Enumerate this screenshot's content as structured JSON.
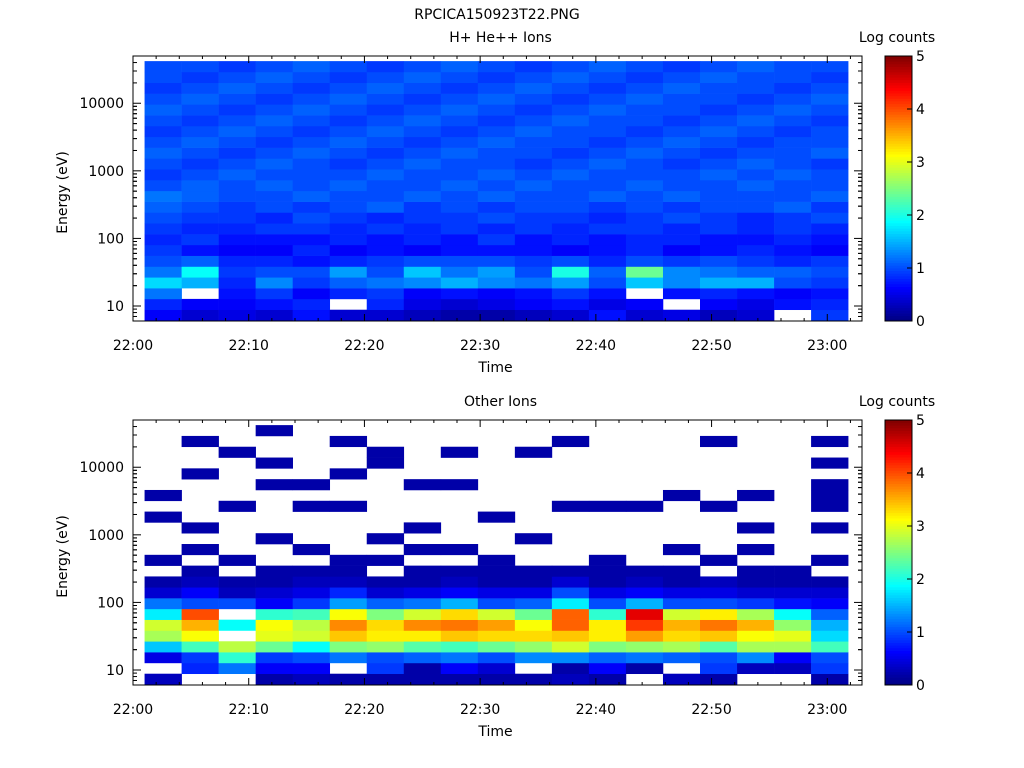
{
  "figure_title": "RPCICA150923T22.PNG",
  "colorscale": [
    "#00007f",
    "#0000ff",
    "#007fff",
    "#00ffff",
    "#7fff7f",
    "#ffff00",
    "#ff7f00",
    "#ff0000",
    "#7f0000"
  ],
  "chart_data": [
    {
      "type": "heatmap",
      "title": "H+ He++ Ions",
      "xlabel": "Time",
      "ylabel": "Energy (eV)",
      "colorbar_label": "Log counts",
      "colorbar_range": [
        0,
        5
      ],
      "colorbar_ticks": [
        "0",
        "1",
        "2",
        "3",
        "4",
        "5"
      ],
      "x_range": [
        "22:00",
        "23:03"
      ],
      "x_ticks": [
        "22:00",
        "22:10",
        "22:20",
        "22:30",
        "22:40",
        "22:50",
        "23:00"
      ],
      "y_scale": "log",
      "y_range": [
        6,
        50000
      ],
      "y_ticks": [
        "10",
        "100",
        "1000",
        "10000"
      ],
      "time_bins": 19,
      "time_bin_start": "22:01",
      "time_bin_minutes": 3.2,
      "energy_bins": 24,
      "note_values": "log10 counts per (time, energy) cell, row 0 = lowest energy; -1 = no data (white)",
      "values": [
        [
          0.6,
          0.4,
          0.5,
          0.4,
          0.7,
          0.4,
          0.4,
          0.3,
          0.2,
          0.2,
          0.3,
          0.4,
          0.7,
          0.4,
          0.5,
          0.3,
          0.4,
          -1,
          0.9
        ],
        [
          0.8,
          0.6,
          0.6,
          0.7,
          0.8,
          -1,
          0.8,
          0.5,
          0.4,
          0.5,
          0.6,
          0.7,
          0.5,
          0.6,
          -1,
          0.6,
          0.5,
          0.7,
          0.8
        ],
        [
          1.2,
          -1,
          0.7,
          0.9,
          0.6,
          0.8,
          0.9,
          0.6,
          0.7,
          0.6,
          0.7,
          0.9,
          0.7,
          -1,
          0.7,
          0.8,
          0.7,
          0.6,
          0.7
        ],
        [
          1.7,
          1.5,
          0.8,
          1.3,
          0.9,
          1.1,
          1.2,
          1.3,
          1.5,
          1.3,
          1.2,
          1.4,
          1.0,
          1.6,
          1.3,
          1.5,
          1.5,
          1.0,
          0.9
        ],
        [
          1.2,
          1.9,
          0.9,
          1.0,
          1.0,
          1.4,
          1.0,
          1.6,
          1.2,
          1.4,
          1.0,
          2.0,
          1.1,
          2.4,
          1.3,
          1.2,
          1.1,
          1.1,
          1.0
        ],
        [
          1.0,
          1.1,
          0.8,
          0.8,
          0.7,
          0.8,
          0.9,
          1.0,
          1.0,
          1.0,
          0.9,
          1.0,
          0.8,
          1.0,
          0.9,
          1.0,
          0.9,
          0.8,
          0.9
        ],
        [
          0.9,
          0.7,
          0.6,
          0.6,
          0.8,
          0.6,
          0.7,
          0.6,
          0.7,
          0.7,
          0.7,
          0.6,
          0.7,
          0.8,
          0.6,
          0.7,
          0.8,
          0.7,
          0.6
        ],
        [
          0.8,
          0.9,
          0.7,
          0.7,
          0.7,
          0.8,
          0.7,
          0.8,
          0.7,
          0.9,
          0.7,
          0.8,
          0.7,
          0.8,
          0.8,
          0.7,
          0.7,
          0.8,
          0.7
        ],
        [
          0.9,
          0.8,
          0.8,
          0.9,
          0.9,
          0.8,
          0.9,
          0.8,
          0.9,
          0.8,
          0.9,
          0.8,
          0.9,
          0.9,
          0.8,
          0.9,
          0.8,
          0.9,
          0.8
        ],
        [
          1.0,
          0.9,
          0.9,
          0.8,
          1.0,
          0.9,
          0.8,
          0.9,
          0.9,
          1.0,
          0.9,
          0.9,
          0.8,
          0.9,
          1.0,
          0.9,
          0.8,
          0.9,
          1.0
        ],
        [
          1.1,
          1.0,
          0.9,
          1.0,
          0.9,
          1.0,
          1.1,
          0.9,
          1.0,
          0.9,
          1.0,
          1.0,
          0.9,
          1.0,
          0.9,
          1.0,
          1.0,
          1.1,
          0.9
        ],
        [
          1.2,
          1.1,
          1.0,
          1.0,
          1.1,
          1.0,
          1.0,
          1.1,
          1.0,
          1.1,
          1.0,
          1.0,
          1.1,
          1.0,
          1.1,
          1.0,
          1.0,
          1.0,
          1.1
        ],
        [
          1.0,
          1.1,
          1.0,
          1.1,
          1.0,
          1.1,
          1.0,
          1.0,
          1.1,
          1.0,
          1.1,
          1.0,
          1.0,
          1.1,
          1.0,
          1.0,
          1.1,
          1.0,
          1.0
        ],
        [
          0.9,
          1.0,
          1.1,
          1.0,
          1.0,
          1.0,
          1.1,
          1.0,
          1.0,
          1.1,
          1.0,
          1.1,
          1.0,
          1.0,
          1.0,
          1.1,
          1.0,
          1.1,
          1.0
        ],
        [
          1.0,
          0.9,
          1.0,
          1.1,
          1.0,
          0.9,
          1.0,
          1.1,
          1.0,
          1.0,
          0.9,
          1.0,
          1.1,
          1.0,
          0.9,
          1.0,
          1.1,
          1.0,
          0.9
        ],
        [
          1.1,
          1.0,
          0.9,
          1.0,
          1.1,
          1.0,
          0.9,
          1.0,
          1.1,
          1.0,
          1.0,
          0.9,
          1.0,
          1.1,
          1.0,
          0.9,
          1.0,
          1.0,
          1.1
        ],
        [
          1.0,
          1.1,
          1.0,
          0.9,
          1.0,
          1.1,
          1.0,
          0.9,
          1.0,
          1.1,
          1.0,
          1.0,
          0.9,
          1.0,
          1.1,
          1.0,
          0.9,
          1.0,
          1.0
        ],
        [
          0.9,
          1.0,
          1.1,
          1.0,
          0.9,
          1.0,
          1.1,
          1.0,
          0.9,
          1.0,
          1.1,
          1.0,
          1.0,
          0.9,
          1.0,
          1.1,
          1.0,
          0.9,
          1.0
        ],
        [
          1.0,
          0.9,
          1.0,
          1.1,
          1.0,
          0.9,
          1.0,
          1.1,
          1.0,
          0.9,
          1.0,
          1.1,
          1.0,
          1.0,
          0.9,
          1.0,
          1.1,
          1.0,
          0.9
        ],
        [
          1.1,
          1.0,
          0.9,
          1.0,
          1.1,
          1.0,
          0.9,
          1.0,
          1.1,
          1.0,
          0.9,
          1.0,
          1.1,
          1.0,
          1.0,
          0.9,
          1.0,
          1.1,
          1.0
        ],
        [
          1.0,
          1.1,
          1.0,
          0.9,
          1.0,
          1.1,
          1.0,
          0.9,
          1.0,
          1.1,
          1.0,
          0.9,
          1.0,
          1.1,
          1.0,
          1.0,
          0.9,
          1.0,
          1.1
        ],
        [
          0.9,
          1.0,
          1.1,
          1.0,
          0.9,
          1.0,
          1.1,
          1.0,
          0.9,
          1.0,
          1.1,
          1.0,
          0.9,
          1.0,
          1.1,
          1.0,
          1.0,
          0.9,
          1.0
        ],
        [
          1.0,
          0.9,
          1.0,
          1.1,
          1.0,
          0.9,
          1.0,
          1.1,
          1.0,
          0.9,
          1.0,
          1.1,
          1.0,
          0.9,
          1.0,
          1.1,
          1.0,
          1.0,
          0.9
        ],
        [
          1.0,
          1.0,
          0.9,
          1.0,
          1.1,
          1.0,
          0.9,
          1.0,
          1.1,
          1.0,
          0.9,
          1.0,
          1.1,
          1.0,
          0.9,
          1.0,
          1.1,
          1.0,
          1.0
        ]
      ]
    },
    {
      "type": "heatmap",
      "title": "Other Ions",
      "xlabel": "Time",
      "ylabel": "Energy (eV)",
      "colorbar_label": "Log counts",
      "colorbar_range": [
        0,
        5
      ],
      "colorbar_ticks": [
        "0",
        "1",
        "2",
        "3",
        "4",
        "5"
      ],
      "x_range": [
        "22:00",
        "23:03"
      ],
      "x_ticks": [
        "22:00",
        "22:10",
        "22:20",
        "22:30",
        "22:40",
        "22:50",
        "23:00"
      ],
      "y_scale": "log",
      "y_range": [
        6,
        50000
      ],
      "y_ticks": [
        "10",
        "100",
        "1000",
        "10000"
      ],
      "time_bins": 19,
      "time_bin_start": "22:01",
      "time_bin_minutes": 3.2,
      "energy_bins": 24,
      "note_values": "log10 counts per (time, energy) cell, row 0 = lowest energy; -1 = no data (white)",
      "values": [
        [
          0.3,
          -1,
          -1,
          0.2,
          0.3,
          0.2,
          0.2,
          0.2,
          0.2,
          0.2,
          0.2,
          0.3,
          0.2,
          -1,
          0.3,
          0.2,
          -1,
          -1,
          0.2
        ],
        [
          -1,
          0.8,
          1.2,
          0.6,
          0.6,
          -1,
          0.9,
          0.2,
          0.6,
          0.4,
          -1,
          0.2,
          0.6,
          0.2,
          -1,
          0.9,
          0.3,
          0.3,
          0.9
        ],
        [
          0.5,
          0.9,
          2.1,
          0.9,
          1.0,
          1.2,
          1.0,
          1.1,
          1.2,
          1.0,
          1.3,
          1.3,
          1.1,
          1.2,
          1.1,
          1.0,
          1.3,
          0.6,
          1.0
        ],
        [
          1.6,
          2.2,
          2.8,
          2.4,
          1.9,
          2.5,
          2.6,
          2.3,
          2.2,
          2.4,
          2.6,
          2.9,
          2.5,
          2.6,
          2.7,
          2.3,
          2.7,
          2.7,
          2.2
        ],
        [
          2.7,
          3.1,
          -1,
          3.0,
          2.9,
          3.4,
          3.2,
          3.2,
          3.4,
          3.3,
          3.3,
          3.4,
          3.2,
          3.6,
          3.3,
          3.4,
          3.1,
          3.0,
          1.7
        ],
        [
          2.9,
          3.5,
          1.9,
          3.1,
          2.8,
          3.7,
          3.3,
          3.7,
          3.8,
          3.6,
          3.1,
          3.9,
          3.2,
          4.1,
          3.5,
          3.8,
          3.5,
          2.6,
          1.5
        ],
        [
          1.8,
          4.0,
          -1,
          2.1,
          2.2,
          3.1,
          2.5,
          2.9,
          3.3,
          2.9,
          2.4,
          3.9,
          2.1,
          4.5,
          2.9,
          3.2,
          2.7,
          1.9,
          1.1
        ],
        [
          1.2,
          1.0,
          1.0,
          0.6,
          0.9,
          1.4,
          1.1,
          1.2,
          1.5,
          1.0,
          1.1,
          1.8,
          1.0,
          1.5,
          1.0,
          1.0,
          0.9,
          0.7,
          0.6
        ],
        [
          0.4,
          0.6,
          0.3,
          0.4,
          0.5,
          0.8,
          0.4,
          0.5,
          0.6,
          0.5,
          0.5,
          1.0,
          0.5,
          0.6,
          0.5,
          0.5,
          0.4,
          0.4,
          0.4
        ],
        [
          0.2,
          0.3,
          0.2,
          0.2,
          0.3,
          0.3,
          0.2,
          0.2,
          0.3,
          0.2,
          0.2,
          0.4,
          0.2,
          0.3,
          0.2,
          0.3,
          0.2,
          0.2,
          0.2
        ],
        [
          -1,
          0.2,
          -1,
          0.2,
          0.2,
          0.2,
          -1,
          0.2,
          0.2,
          0.2,
          0.2,
          0.2,
          0.2,
          0.2,
          0.2,
          -1,
          0.2,
          0.2,
          -1
        ],
        [
          0.2,
          -1,
          0.2,
          -1,
          -1,
          0.2,
          0.2,
          -1,
          -1,
          0.2,
          -1,
          -1,
          0.2,
          -1,
          -1,
          0.2,
          -1,
          -1,
          0.2
        ],
        [
          -1,
          0.2,
          -1,
          -1,
          0.2,
          -1,
          -1,
          0.2,
          0.2,
          -1,
          -1,
          -1,
          -1,
          -1,
          0.2,
          -1,
          0.2,
          -1,
          -1
        ],
        [
          -1,
          -1,
          -1,
          0.2,
          -1,
          -1,
          0.2,
          -1,
          -1,
          -1,
          0.2,
          -1,
          -1,
          -1,
          -1,
          -1,
          -1,
          -1,
          -1
        ],
        [
          -1,
          0.2,
          -1,
          -1,
          -1,
          -1,
          -1,
          0.2,
          -1,
          -1,
          -1,
          -1,
          -1,
          -1,
          -1,
          -1,
          0.2,
          -1,
          0.2
        ],
        [
          0.2,
          -1,
          -1,
          -1,
          -1,
          -1,
          -1,
          -1,
          -1,
          0.2,
          -1,
          -1,
          -1,
          -1,
          -1,
          -1,
          -1,
          -1,
          -1
        ],
        [
          -1,
          -1,
          0.2,
          -1,
          0.2,
          0.2,
          -1,
          -1,
          -1,
          -1,
          -1,
          0.2,
          0.2,
          0.2,
          -1,
          0.2,
          -1,
          -1,
          0.2
        ],
        [
          0.2,
          -1,
          -1,
          -1,
          -1,
          -1,
          -1,
          -1,
          -1,
          -1,
          -1,
          -1,
          -1,
          -1,
          0.2,
          -1,
          0.2,
          -1,
          0.2
        ],
        [
          -1,
          -1,
          -1,
          0.2,
          0.2,
          -1,
          -1,
          0.2,
          0.2,
          -1,
          -1,
          -1,
          -1,
          -1,
          -1,
          -1,
          -1,
          -1,
          0.2
        ],
        [
          -1,
          0.2,
          -1,
          -1,
          -1,
          0.2,
          -1,
          -1,
          -1,
          -1,
          -1,
          -1,
          -1,
          -1,
          -1,
          -1,
          -1,
          -1,
          -1
        ],
        [
          -1,
          -1,
          -1,
          0.2,
          -1,
          -1,
          0.2,
          -1,
          -1,
          -1,
          -1,
          -1,
          -1,
          -1,
          -1,
          -1,
          -1,
          -1,
          0.2
        ],
        [
          -1,
          -1,
          0.2,
          -1,
          -1,
          -1,
          0.2,
          -1,
          0.2,
          -1,
          0.2,
          -1,
          -1,
          -1,
          -1,
          -1,
          -1,
          -1,
          -1
        ],
        [
          -1,
          0.2,
          -1,
          -1,
          -1,
          0.2,
          -1,
          -1,
          -1,
          -1,
          -1,
          0.2,
          -1,
          -1,
          -1,
          0.2,
          -1,
          -1,
          0.2
        ],
        [
          -1,
          -1,
          -1,
          0.2,
          -1,
          -1,
          -1,
          -1,
          -1,
          -1,
          -1,
          -1,
          -1,
          -1,
          -1,
          -1,
          -1,
          -1,
          -1
        ]
      ]
    }
  ]
}
